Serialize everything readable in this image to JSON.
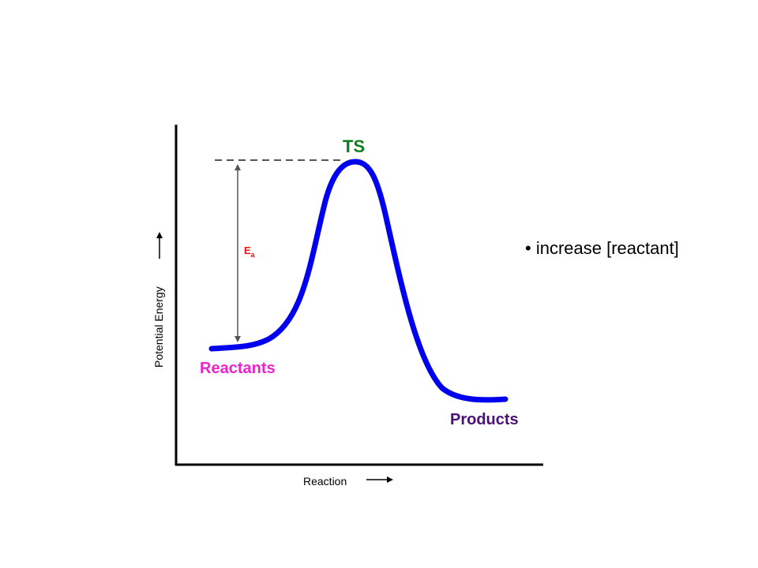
{
  "colors": {
    "axis": "#000000",
    "curve": "#0000ee",
    "ts": "#0a7d1e",
    "reactants": "#ee22cc",
    "products": "#4a1078",
    "ea": "#ee1111",
    "guide": "#555555",
    "text": "#000000"
  },
  "labels": {
    "ts": "TS",
    "reactants": "Reactants",
    "products": "Products",
    "ea_main": "E",
    "ea_sub": "a",
    "x_axis": "Reaction",
    "y_axis": "Potential Energy",
    "bullet": "• increase [reactant]"
  }
}
